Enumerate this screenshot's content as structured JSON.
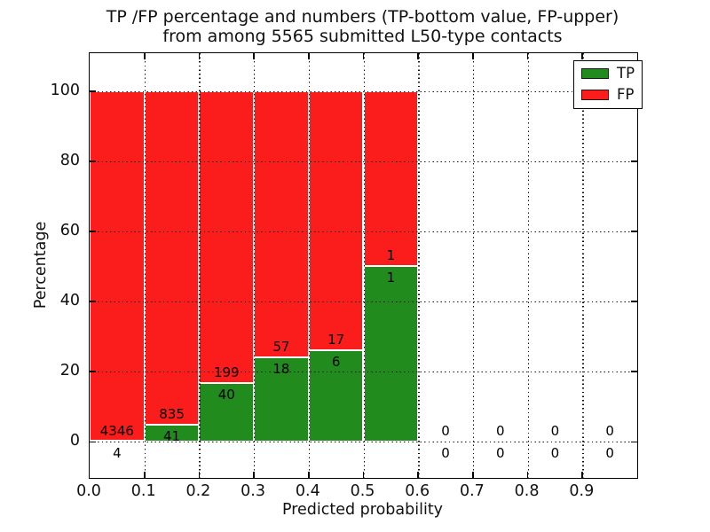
{
  "title": {
    "line1": "TP /FP percentage and numbers (TP-bottom value, FP-upper)",
    "line2": "from among 5565 submitted L50-type contacts"
  },
  "x_axis": {
    "label": "Predicted probability",
    "ticks": [
      "0.0",
      "0.1",
      "0.2",
      "0.3",
      "0.4",
      "0.5",
      "0.6",
      "0.7",
      "0.8",
      "0.9"
    ]
  },
  "y_axis": {
    "label": "Percentage",
    "ticks": [
      "0",
      "20",
      "40",
      "60",
      "80",
      "100"
    ]
  },
  "legend": {
    "position": "upper-right",
    "items": [
      {
        "label": "TP",
        "color": "#218b1e"
      },
      {
        "label": "FP",
        "color": "#fb1c1c"
      }
    ]
  },
  "chart_data": {
    "type": "bar",
    "stacked": true,
    "normalized_to_percent": true,
    "title": "TP /FP percentage and numbers (TP-bottom value, FP-upper) from among 5565 submitted L50-type contacts",
    "xlabel": "Predicted probability",
    "ylabel": "Percentage",
    "total_submitted": 5565,
    "bin_width": 0.1,
    "bin_starts": [
      0.0,
      0.1,
      0.2,
      0.3,
      0.4,
      0.5,
      0.6,
      0.7,
      0.8,
      0.9
    ],
    "series": [
      {
        "name": "TP",
        "color": "#218b1e",
        "counts": [
          4,
          41,
          40,
          18,
          6,
          1,
          0,
          0,
          0,
          0
        ]
      },
      {
        "name": "FP",
        "color": "#fb1c1c",
        "counts": [
          4346,
          835,
          199,
          57,
          17,
          1,
          0,
          0,
          0,
          0
        ]
      }
    ],
    "xlim": [
      0.0,
      1.0
    ],
    "ylim": [
      -10,
      111
    ],
    "grid": "dotted",
    "bar_edge_color": "#ffffff",
    "label_note": "each bar shows FP count above TP count at the TP/FP boundary"
  }
}
